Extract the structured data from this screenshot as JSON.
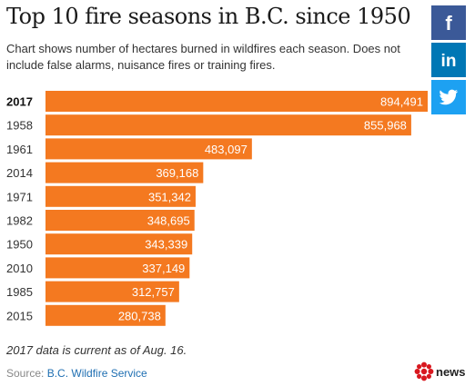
{
  "header": {
    "title": "Top 10 fire seasons in B.C. since 1950",
    "subtitle": "Chart shows number of hectares burned in wildfires each season. Does not include false alarms, nuisance fires or training fires."
  },
  "share": {
    "facebook_label": "f",
    "linkedin_label": "in",
    "twitter_icon": "twitter-bird-icon"
  },
  "chart_data": {
    "type": "bar",
    "orientation": "horizontal",
    "categories": [
      "2017",
      "1958",
      "1961",
      "2014",
      "1971",
      "1982",
      "1950",
      "2010",
      "1985",
      "2015"
    ],
    "values": [
      894491,
      855968,
      483097,
      369168,
      351342,
      348695,
      343339,
      337149,
      312757,
      280738
    ],
    "value_labels": [
      "894,491",
      "855,968",
      "483,097",
      "369,168",
      "351,342",
      "348,695",
      "343,339",
      "337,149",
      "312,757",
      "280,738"
    ],
    "highlight_category": "2017",
    "bar_color": "#f47920",
    "grid": false
  },
  "footer": {
    "footnote": "2017 data is current as of Aug. 16.",
    "source_prefix": "Source:",
    "source_name": "B.C. Wildfire Service",
    "logo_text": "news"
  }
}
